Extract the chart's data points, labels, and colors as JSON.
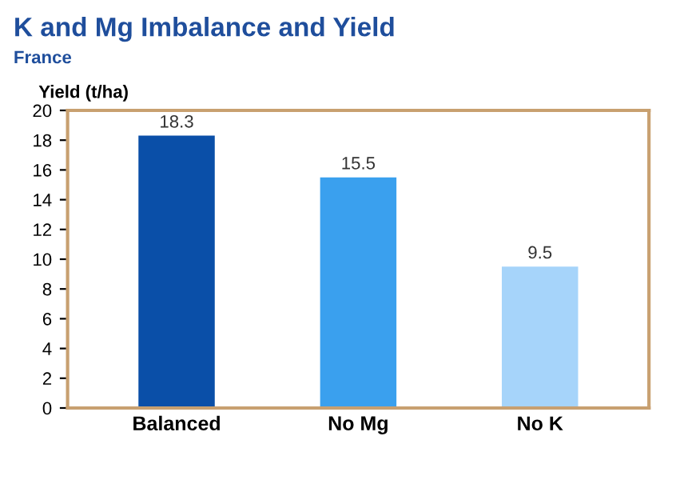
{
  "chart_data": {
    "type": "bar",
    "title": "K and Mg Imbalance and Yield",
    "subtitle": "France",
    "ylabel": "Yield (t/ha)",
    "categories": [
      "Balanced",
      "No Mg",
      "No K"
    ],
    "values": [
      18.3,
      15.5,
      9.5
    ],
    "colors": [
      "#0a4fa8",
      "#3aa0ee",
      "#a6d4fa"
    ],
    "ylim": [
      0,
      20
    ],
    "yticks": [
      0,
      2,
      4,
      6,
      8,
      10,
      12,
      14,
      16,
      18,
      20
    ],
    "data_labels": true,
    "grid": false
  }
}
